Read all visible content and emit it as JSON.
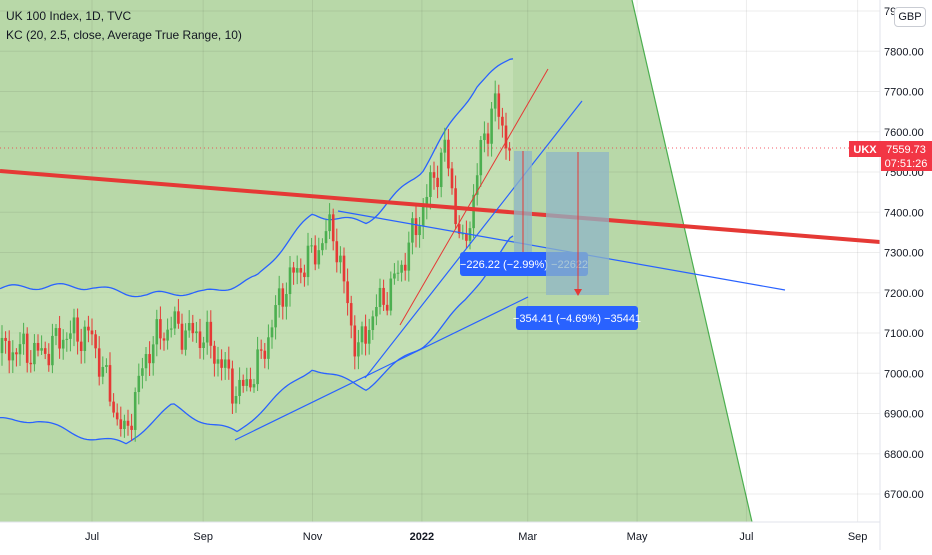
{
  "legend": {
    "title": "UK 100 Index, 1D, TVC",
    "indicator": "KC (20, 2.5, close, Average True Range, 10)"
  },
  "currency": "GBP",
  "colors": {
    "background": "#ffffff",
    "shaded_region": "#b8d8a8",
    "channel_fill": "#cde5bd",
    "band_line": "#2962ff",
    "candle_up": "#4caf50",
    "candle_down": "#e53935",
    "thick_trendline": "#e53935",
    "measure_box": "#8fb6c7",
    "measure_label": "#2962ff",
    "price_tag": "#f23645"
  },
  "price_tag": {
    "symbol": "UKX",
    "price": "7559.73",
    "countdown": "07:51:26"
  },
  "measures": [
    {
      "label": "−226.22 (−2.99%) −22622",
      "change": -226.22,
      "percent": -2.99
    },
    {
      "label": "−354.41 (−4.69%) −35441",
      "change": -354.41,
      "percent": -4.69
    }
  ],
  "chart_data": {
    "type": "candlestick",
    "symbol": "UK 100 Index",
    "interval": "1D",
    "source": "TVC",
    "last_price": 7559.73,
    "y_axis": {
      "ticks": [
        "7900.00",
        "7800.00",
        "7700.00",
        "7600.00",
        "7500.00",
        "7400.00",
        "7300.00",
        "7200.00",
        "7100.00",
        "7000.00",
        "6900.00",
        "6800.00",
        "6700.00"
      ],
      "range": [
        6620,
        7920
      ]
    },
    "x_axis": {
      "ticks": [
        "Jul",
        "Sep",
        "Nov",
        "2022",
        "Mar",
        "May",
        "Jul",
        "Sep"
      ]
    },
    "price_path": [
      [
        "2021-06-01",
        7050
      ],
      [
        "2021-06-15",
        7100
      ],
      [
        "2021-07-01",
        7080
      ],
      [
        "2021-07-19",
        6850
      ],
      [
        "2021-08-01",
        7050
      ],
      [
        "2021-08-15",
        7120
      ],
      [
        "2021-09-01",
        7100
      ],
      [
        "2021-09-20",
        6940
      ],
      [
        "2021-10-01",
        7020
      ],
      [
        "2021-10-15",
        7200
      ],
      [
        "2021-11-01",
        7290
      ],
      [
        "2021-11-12",
        7380
      ],
      [
        "2021-11-26",
        7040
      ],
      [
        "2021-12-06",
        7150
      ],
      [
        "2021-12-15",
        7220
      ],
      [
        "2021-12-31",
        7390
      ],
      [
        "2022-01-14",
        7550
      ],
      [
        "2022-01-24",
        7300
      ],
      [
        "2022-02-03",
        7560
      ],
      [
        "2022-02-10",
        7670
      ],
      [
        "2022-02-18",
        7560
      ]
    ],
    "keltner_channel": {
      "params": "20, 2.5, close, Average True Range, 10",
      "upper": [
        [
          "2021-06-01",
          7210
        ],
        [
          "2021-07-01",
          7220
        ],
        [
          "2021-08-01",
          7190
        ],
        [
          "2021-09-01",
          7200
        ],
        [
          "2021-10-01",
          7240
        ],
        [
          "2021-11-01",
          7390
        ],
        [
          "2021-12-01",
          7380
        ],
        [
          "2022-01-01",
          7500
        ],
        [
          "2022-02-01",
          7720
        ],
        [
          "2022-02-20",
          7790
        ]
      ],
      "lower": [
        [
          "2021-06-01",
          6880
        ],
        [
          "2021-07-20",
          6820
        ],
        [
          "2021-08-15",
          6920
        ],
        [
          "2021-09-20",
          6850
        ],
        [
          "2021-10-15",
          6950
        ],
        [
          "2021-11-01",
          7020
        ],
        [
          "2021-12-01",
          6960
        ],
        [
          "2022-01-01",
          7070
        ],
        [
          "2022-01-25",
          7180
        ],
        [
          "2022-02-20",
          7330
        ]
      ]
    }
  }
}
